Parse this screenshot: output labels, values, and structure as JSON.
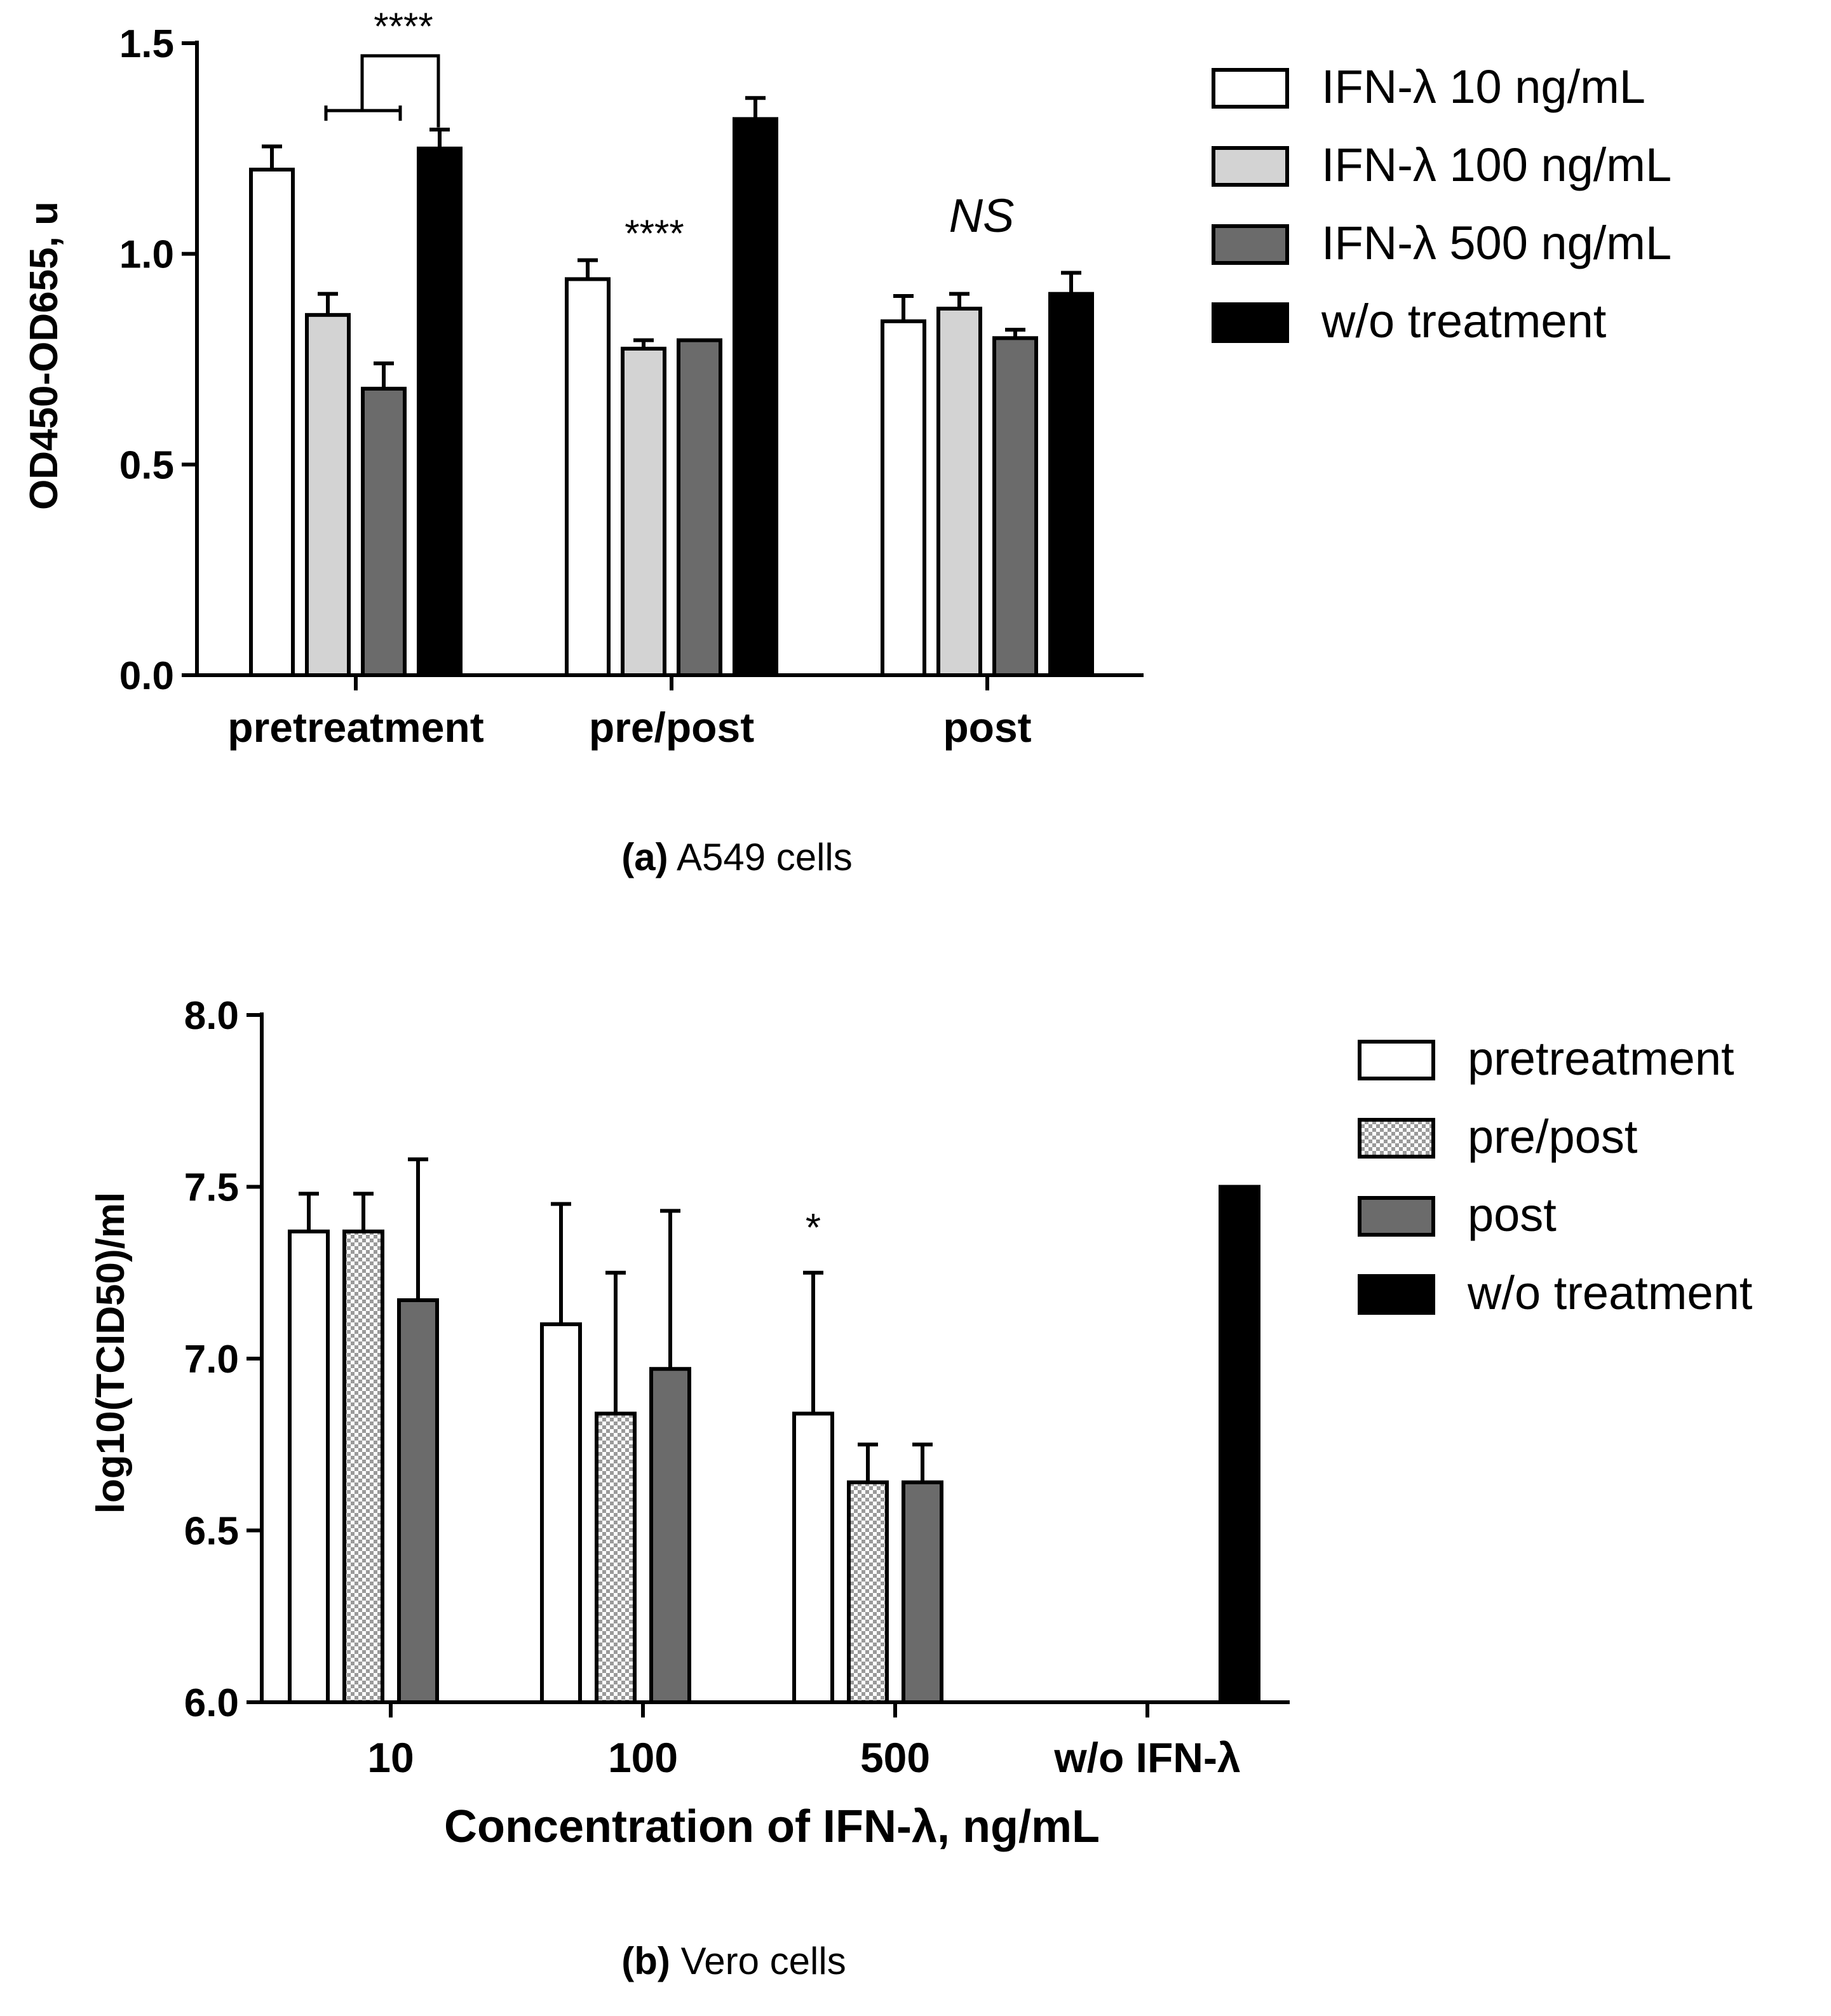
{
  "chart_data": [
    {
      "type": "bar",
      "caption_label": "(a)",
      "caption_text": "A549 cells",
      "ylabel": "OD450-OD655, u",
      "xlabel": "",
      "ylim": [
        0,
        1.5
      ],
      "yticks": [
        0,
        0.5,
        1,
        1.5
      ],
      "ytick_labels": [
        "0.0",
        "0.5",
        "1.0",
        "1.5"
      ],
      "categories": [
        "pretreatment",
        "pre/post",
        "post"
      ],
      "series": [
        {
          "name": "IFN-λ 10 ng/mL",
          "fill": "white",
          "values": [
            1.2,
            0.94,
            0.84
          ],
          "errors": [
            0.055,
            0.045,
            0.06
          ]
        },
        {
          "name": "IFN-λ 100 ng/mL",
          "fill": "light",
          "values": [
            0.855,
            0.775,
            0.87
          ],
          "errors": [
            0.05,
            0.02,
            0.035
          ]
        },
        {
          "name": "IFN-λ 500 ng/mL",
          "fill": "dark",
          "values": [
            0.68,
            0.795,
            0.8
          ],
          "errors": [
            0.06,
            0.0,
            0.02
          ]
        },
        {
          "name": "w/o treatment",
          "fill": "black",
          "values": [
            1.25,
            1.32,
            0.905
          ],
          "errors": [
            0.045,
            0.05,
            0.05
          ]
        }
      ],
      "annotations": [
        {
          "text": "****",
          "group": 0,
          "style": "bracket"
        },
        {
          "text": "****",
          "group": 1,
          "style": "plain"
        },
        {
          "text": "NS",
          "group": 2,
          "style": "italic"
        }
      ],
      "legend_position": "top-right"
    },
    {
      "type": "bar",
      "caption_label": "(b)",
      "caption_text": "Vero cells",
      "ylabel": "log10(TCID50)/ml",
      "xlabel": "Concentration of IFN-λ, ng/mL",
      "ylim": [
        6.0,
        8.0
      ],
      "yticks": [
        6.0,
        6.5,
        7.0,
        7.5,
        8.0
      ],
      "ytick_labels": [
        "6.0",
        "6.5",
        "7.0",
        "7.5",
        "8.0"
      ],
      "categories": [
        "10",
        "100",
        "500",
        "w/o IFN-λ"
      ],
      "series": [
        {
          "name": "pretreatment",
          "fill": "white",
          "values": [
            7.37,
            7.1,
            6.84,
            null
          ],
          "errors": [
            0.11,
            0.35,
            0.41,
            null
          ]
        },
        {
          "name": "pre/post",
          "fill": "checker",
          "values": [
            7.37,
            6.84,
            6.64,
            null
          ],
          "errors": [
            0.11,
            0.41,
            0.11,
            null
          ]
        },
        {
          "name": "post",
          "fill": "dark",
          "values": [
            7.17,
            6.97,
            6.64,
            null
          ],
          "errors": [
            0.41,
            0.46,
            0.11,
            null
          ]
        },
        {
          "name": "w/o treatment",
          "fill": "black",
          "values": [
            null,
            null,
            null,
            7.5
          ],
          "errors": [
            null,
            null,
            null,
            0
          ]
        }
      ],
      "annotations": [
        {
          "text": "*",
          "group": 2,
          "series": 0
        }
      ],
      "legend_position": "top-right"
    }
  ]
}
